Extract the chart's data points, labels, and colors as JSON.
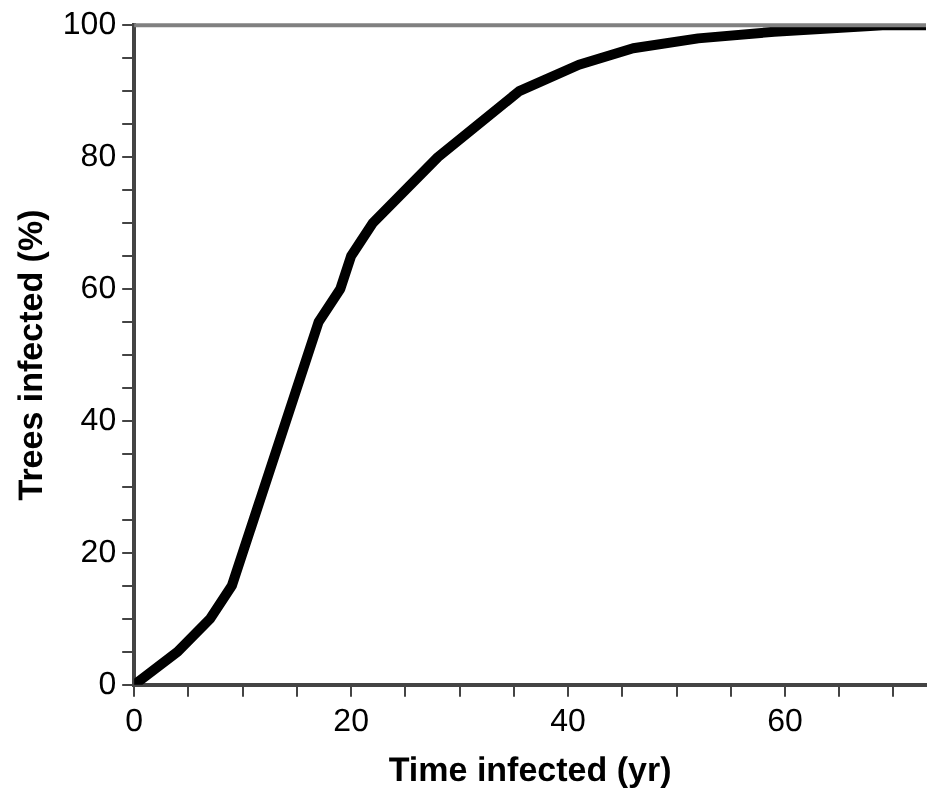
{
  "chart_data": {
    "type": "line",
    "xlabel": "Time infected (yr)",
    "ylabel": "Trees infected (%)",
    "series": [
      {
        "color": "#000000",
        "x": [
          0,
          4,
          7,
          9,
          17,
          19,
          20,
          22,
          28,
          35.5,
          41,
          46,
          52,
          59,
          69,
          73
        ],
        "values": [
          0,
          5,
          10,
          15,
          55,
          60,
          65,
          70,
          80,
          90,
          94,
          96.5,
          98,
          99,
          100,
          100
        ]
      }
    ],
    "xlim": [
      0,
      73
    ],
    "xticks": [
      0,
      {
        "value": 5,
        "label": null
      },
      {
        "value": 10,
        "label": null
      },
      {
        "value": 15,
        "label": null
      },
      20,
      {
        "value": 25,
        "label": null
      },
      {
        "value": 30,
        "label": null
      },
      {
        "value": 35,
        "label": null
      },
      40,
      {
        "value": 45,
        "label": null
      },
      {
        "value": 50,
        "label": null
      },
      {
        "value": 55,
        "label": null
      },
      60,
      {
        "value": 65,
        "label": null
      },
      {
        "value": 70,
        "label": null
      }
    ],
    "ylim": [
      0,
      100
    ],
    "yticks": [
      0,
      {
        "value": 5,
        "label": null
      },
      {
        "value": 10,
        "label": null
      },
      {
        "value": 15,
        "label": null
      },
      20,
      {
        "value": 25,
        "label": null
      },
      {
        "value": 30,
        "label": null
      },
      {
        "value": 35,
        "label": null
      },
      40,
      {
        "value": 45,
        "label": null
      },
      {
        "value": 50,
        "label": null
      },
      {
        "value": 55,
        "label": null
      },
      60,
      {
        "value": 65,
        "label": null
      },
      {
        "value": 70,
        "label": null
      },
      {
        "value": 75,
        "label": null
      },
      80,
      {
        "value": 85,
        "label": null
      },
      {
        "value": 90,
        "label": null
      },
      {
        "value": 95,
        "label": null
      },
      100
    ],
    "ref_lines": [
      {
        "axis": "y",
        "value": 100,
        "color": "#808080"
      }
    ],
    "grid": false,
    "legend": false,
    "marker": "none",
    "line_style": "solid"
  }
}
